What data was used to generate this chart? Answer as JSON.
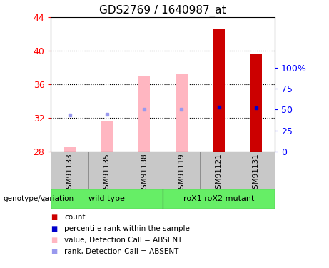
{
  "title": "GDS2769 / 1640987_at",
  "samples": [
    "GSM91133",
    "GSM91135",
    "GSM91138",
    "GSM91119",
    "GSM91121",
    "GSM91131"
  ],
  "ylim": [
    28,
    44
  ],
  "yticks_left": [
    28,
    32,
    36,
    40,
    44
  ],
  "yticks_right_labels": [
    "0",
    "25",
    "50",
    "75",
    "100%"
  ],
  "yticks_right_positions": [
    28,
    30.5,
    33,
    35.5,
    38
  ],
  "dotted_lines": [
    32,
    36,
    40
  ],
  "bar_bottom": 28,
  "absent_bar_tops": [
    28.55,
    31.65,
    37.0,
    37.3,
    null,
    null
  ],
  "absent_rank_dots": [
    32.3,
    32.4,
    33.0,
    33.0,
    null,
    null
  ],
  "present_bar_tops": [
    null,
    null,
    null,
    null,
    42.7,
    39.6
  ],
  "present_rank_dots": [
    null,
    null,
    null,
    null,
    33.3,
    33.2
  ],
  "absent_bar_color": "#FFB6C1",
  "absent_rank_color": "#9999EE",
  "present_bar_color": "#CC0000",
  "present_rank_color": "#0000CC",
  "group_bg_color": "#C8C8C8",
  "green_color": "#66EE66",
  "title_fontsize": 11,
  "tick_fontsize": 9,
  "bar_width": 0.32,
  "legend_items": [
    {
      "label": "count",
      "color": "#CC0000"
    },
    {
      "label": "percentile rank within the sample",
      "color": "#0000CC"
    },
    {
      "label": "value, Detection Call = ABSENT",
      "color": "#FFB6C1"
    },
    {
      "label": "rank, Detection Call = ABSENT",
      "color": "#9999EE"
    }
  ]
}
